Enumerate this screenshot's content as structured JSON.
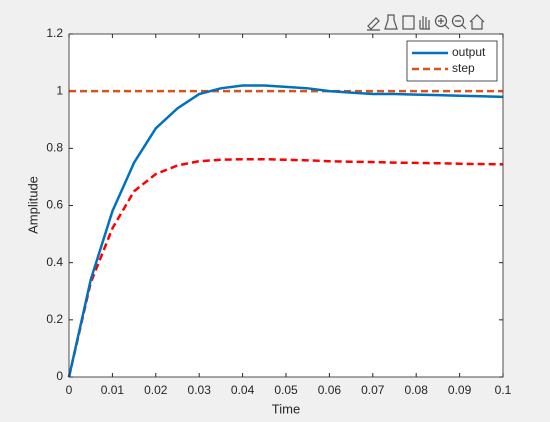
{
  "chart_data": {
    "type": "line",
    "xlabel": "Time",
    "ylabel": "Amplitude",
    "x": [
      0,
      0.005,
      0.01,
      0.015,
      0.02,
      0.025,
      0.03,
      0.035,
      0.04,
      0.045,
      0.05,
      0.055,
      0.06,
      0.065,
      0.07,
      0.075,
      0.08,
      0.085,
      0.09,
      0.095,
      0.1
    ],
    "series": [
      {
        "name": "output",
        "color": "#0072bd",
        "linestyle": "solid",
        "values": [
          0,
          0.34,
          0.58,
          0.75,
          0.87,
          0.94,
          0.99,
          1.01,
          1.02,
          1.02,
          1.015,
          1.01,
          1.0,
          0.995,
          0.99,
          0.99,
          0.988,
          0.986,
          0.984,
          0.982,
          0.98
        ]
      },
      {
        "name": "step",
        "color": "#d95319",
        "linestyle": "dashed",
        "values": [
          1,
          1,
          1,
          1,
          1,
          1,
          1,
          1,
          1,
          1,
          1,
          1,
          1,
          1,
          1,
          1,
          1,
          1,
          1,
          1,
          1
        ]
      },
      {
        "color": "#ff0000",
        "linestyle": "dashed",
        "values": [
          0,
          0.33,
          0.52,
          0.65,
          0.71,
          0.74,
          0.755,
          0.76,
          0.762,
          0.762,
          0.76,
          0.758,
          0.755,
          0.753,
          0.752,
          0.75,
          0.749,
          0.748,
          0.746,
          0.745,
          0.744
        ]
      }
    ],
    "xlim": [
      0,
      0.1
    ],
    "xticks": [
      0,
      0.01,
      0.02,
      0.03,
      0.04,
      0.05,
      0.06,
      0.07,
      0.08,
      0.09,
      0.1
    ],
    "ylim": [
      0,
      1.2
    ],
    "yticks": [
      0,
      0.2,
      0.4,
      0.6,
      0.8,
      1,
      1.2
    ],
    "grid": false,
    "legend": "northeast"
  }
}
